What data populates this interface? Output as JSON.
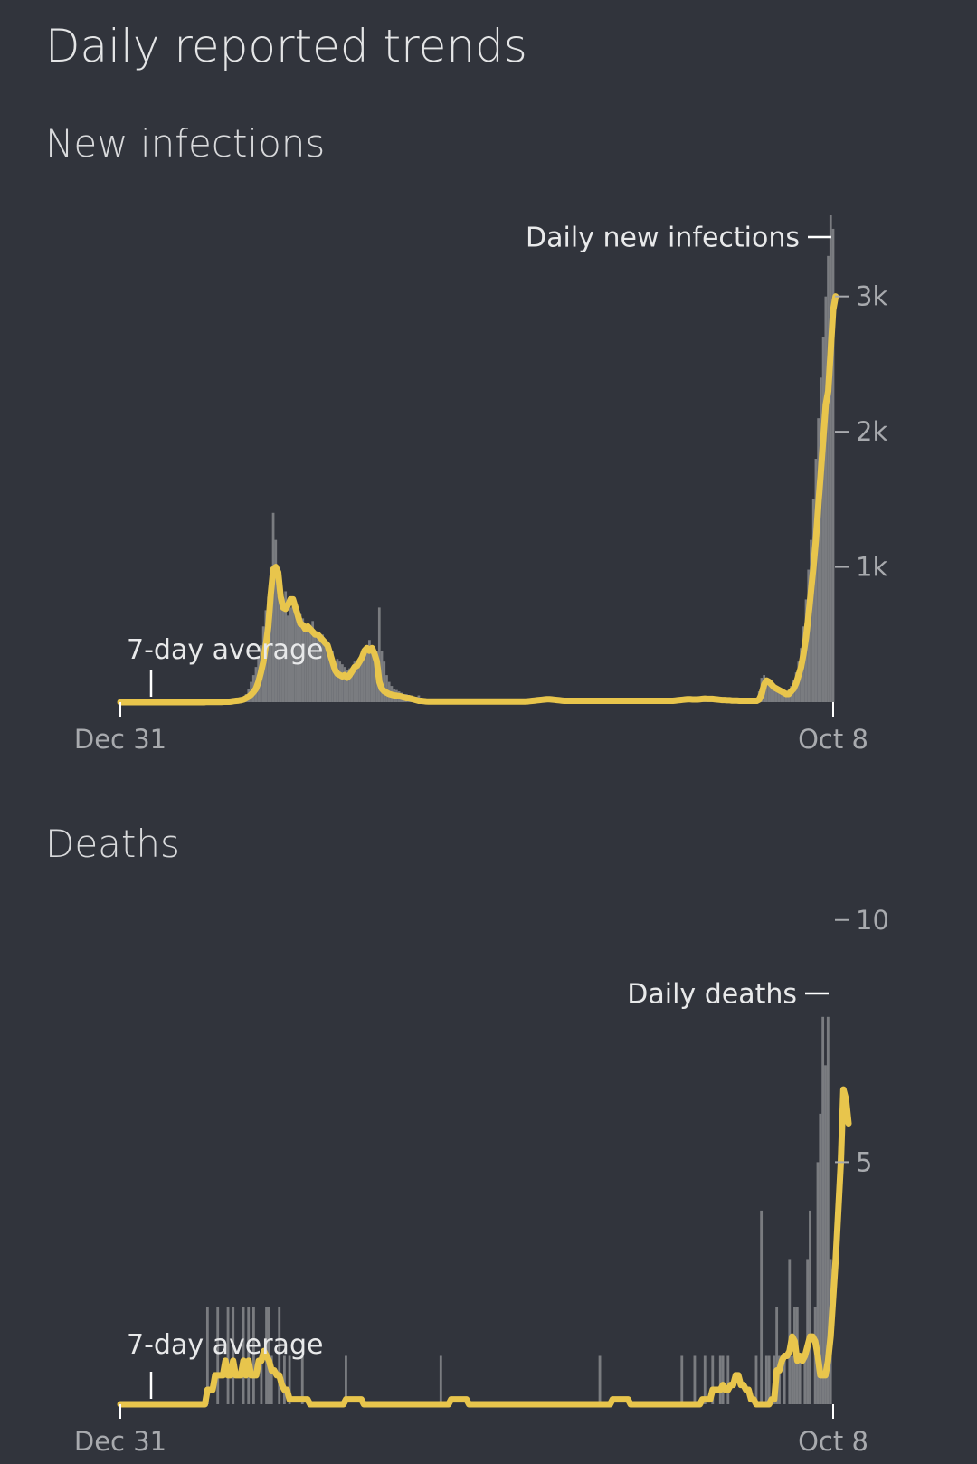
{
  "page": {
    "title": "Daily reported trends"
  },
  "colors": {
    "background": "#31343c",
    "average_line": "#e8c54c",
    "daily_bars": "#7a7c80",
    "text": "#e6e7e8",
    "tick_text": "#a8aaae"
  },
  "chart_data": [
    {
      "id": "infections",
      "type": "bar",
      "title": "New infections",
      "x_start_label": "Dec 31",
      "x_end_label": "Oct 8",
      "ylim": [
        0,
        3600
      ],
      "y_ticks": [
        {
          "value": 1000,
          "label": "1k"
        },
        {
          "value": 2000,
          "label": "2k"
        },
        {
          "value": 3000,
          "label": "3k"
        }
      ],
      "annotations": {
        "daily_label": "Daily new infections",
        "average_label": "7-day average"
      },
      "series": [
        {
          "name": "Daily new infections",
          "kind": "bars",
          "values": [
            0,
            0,
            0,
            0,
            0,
            0,
            0,
            0,
            0,
            0,
            0,
            0,
            0,
            0,
            0,
            0,
            0,
            0,
            0,
            0,
            0,
            0,
            0,
            0,
            0,
            0,
            0,
            0,
            0,
            0,
            0,
            5,
            0,
            0,
            0,
            10,
            5,
            0,
            0,
            0,
            0,
            10,
            20,
            0,
            5,
            15,
            20,
            30,
            10,
            20,
            40,
            60,
            100,
            150,
            200,
            260,
            340,
            420,
            560,
            680,
            780,
            1000,
            1400,
            1200,
            850,
            760,
            700,
            820,
            640,
            700,
            760,
            720,
            700,
            650,
            620,
            580,
            560,
            540,
            600,
            520,
            500,
            480,
            500,
            460,
            420,
            400,
            380,
            300,
            320,
            300,
            280,
            260,
            240,
            250,
            260,
            300,
            280,
            320,
            340,
            380,
            420,
            460,
            420,
            400,
            380,
            700,
            380,
            300,
            200,
            150,
            120,
            100,
            90,
            80,
            70,
            60,
            60,
            50,
            50,
            40,
            40,
            50,
            30,
            30,
            20,
            20,
            15,
            15,
            10,
            10,
            10,
            8,
            8,
            5,
            5,
            5,
            5,
            5,
            5,
            5,
            5,
            5,
            5,
            5,
            5,
            5,
            5,
            5,
            5,
            5,
            5,
            5,
            5,
            5,
            5,
            5,
            5,
            5,
            5,
            5,
            5,
            5,
            5,
            5,
            10,
            10,
            10,
            10,
            15,
            15,
            15,
            15,
            20,
            20,
            20,
            20,
            15,
            15,
            15,
            15,
            10,
            10,
            10,
            10,
            10,
            10,
            10,
            10,
            10,
            10,
            10,
            10,
            10,
            10,
            10,
            10,
            10,
            10,
            10,
            10,
            10,
            10,
            10,
            10,
            10,
            10,
            10,
            10,
            10,
            10,
            10,
            10,
            10,
            10,
            10,
            10,
            10,
            10,
            10,
            10,
            10,
            10,
            10,
            10,
            10,
            15,
            15,
            15,
            20,
            20,
            25,
            20,
            15,
            20,
            20,
            25,
            30,
            20,
            25,
            30,
            20,
            20,
            15,
            15,
            15,
            15,
            10,
            10,
            10,
            10,
            10,
            10,
            10,
            10,
            10,
            10,
            10,
            10,
            20,
            80,
            180,
            200,
            150,
            130,
            110,
            100,
            90,
            80,
            60,
            60,
            70,
            90,
            120,
            160,
            220,
            300,
            400,
            560,
            760,
            980,
            1200,
            1500,
            1800,
            2100,
            2400,
            2700,
            3000,
            3300,
            3600,
            3500
          ]
        },
        {
          "name": "7-day average",
          "kind": "line",
          "values": [
            0,
            0,
            0,
            0,
            0,
            0,
            0,
            0,
            0,
            0,
            0,
            0,
            0,
            0,
            0,
            0,
            0,
            0,
            0,
            0,
            0,
            0,
            0,
            0,
            0,
            0,
            0,
            0,
            0,
            0,
            0,
            0,
            0,
            0,
            0,
            2,
            2,
            2,
            2,
            2,
            2,
            2,
            3,
            3,
            3,
            5,
            8,
            10,
            12,
            15,
            20,
            30,
            40,
            55,
            75,
            100,
            150,
            220,
            300,
            420,
            560,
            800,
            980,
            1000,
            960,
            780,
            700,
            690,
            720,
            760,
            760,
            700,
            640,
            580,
            570,
            540,
            560,
            540,
            520,
            500,
            500,
            480,
            460,
            440,
            420,
            360,
            300,
            240,
            210,
            200,
            190,
            200,
            180,
            200,
            230,
            260,
            270,
            300,
            330,
            380,
            400,
            380,
            400,
            360,
            300,
            150,
            100,
            80,
            70,
            60,
            55,
            50,
            48,
            45,
            40,
            35,
            30,
            30,
            25,
            20,
            15,
            10,
            10,
            8,
            6,
            5,
            5,
            5,
            5,
            5,
            5,
            5,
            5,
            5,
            5,
            5,
            5,
            5,
            5,
            5,
            5,
            5,
            5,
            5,
            5,
            5,
            5,
            5,
            5,
            5,
            5,
            5,
            5,
            5,
            5,
            5,
            5,
            5,
            5,
            5,
            5,
            5,
            5,
            5,
            5,
            6,
            8,
            10,
            12,
            14,
            16,
            18,
            20,
            22,
            22,
            20,
            18,
            16,
            14,
            12,
            10,
            10,
            10,
            10,
            10,
            10,
            10,
            10,
            10,
            10,
            10,
            10,
            10,
            10,
            10,
            10,
            10,
            10,
            10,
            10,
            10,
            10,
            10,
            10,
            10,
            10,
            10,
            10,
            10,
            10,
            10,
            10,
            10,
            10,
            10,
            10,
            10,
            10,
            10,
            10,
            10,
            10,
            10,
            10,
            10,
            12,
            14,
            16,
            18,
            20,
            22,
            22,
            20,
            20,
            20,
            22,
            24,
            26,
            24,
            24,
            24,
            22,
            20,
            18,
            16,
            16,
            14,
            14,
            12,
            12,
            12,
            10,
            10,
            10,
            10,
            10,
            10,
            10,
            10,
            20,
            60,
            130,
            160,
            150,
            130,
            110,
            100,
            90,
            80,
            70,
            60,
            60,
            80,
            100,
            140,
            200,
            260,
            360,
            480,
            640,
            820,
            1000,
            1200,
            1460,
            1700,
            1950,
            2200,
            2300,
            2600,
            2900,
            3000
          ]
        }
      ]
    },
    {
      "id": "deaths",
      "type": "bar",
      "title": "Deaths",
      "x_start_label": "Dec 31",
      "x_end_label": "Oct 8",
      "ylim": [
        0,
        10.5
      ],
      "y_ticks": [
        {
          "value": 5,
          "label": "5"
        },
        {
          "value": 10,
          "label": "10"
        }
      ],
      "annotations": {
        "daily_label": "Daily deaths",
        "average_label": "7-day average"
      },
      "series": [
        {
          "name": "Daily deaths",
          "kind": "bars",
          "values": [
            0,
            0,
            0,
            0,
            0,
            0,
            0,
            0,
            0,
            0,
            0,
            0,
            0,
            0,
            0,
            0,
            0,
            0,
            0,
            0,
            0,
            0,
            0,
            0,
            0,
            0,
            0,
            0,
            0,
            0,
            0,
            0,
            0,
            0,
            2,
            0,
            0,
            0,
            2,
            0,
            0,
            0,
            2,
            0,
            2,
            0,
            0,
            0,
            2,
            0,
            2,
            0,
            2,
            0,
            0,
            1,
            0,
            2,
            2,
            1,
            0,
            0,
            2,
            0,
            1,
            0,
            1,
            0,
            0,
            0,
            0,
            1,
            0,
            0,
            0,
            0,
            0,
            0,
            0,
            0,
            0,
            0,
            0,
            0,
            0,
            0,
            0,
            0,
            1,
            0,
            0,
            0,
            0,
            0,
            0,
            0,
            0,
            0,
            0,
            0,
            0,
            0,
            0,
            0,
            0,
            0,
            0,
            0,
            0,
            0,
            0,
            0,
            0,
            0,
            0,
            0,
            0,
            0,
            0,
            0,
            0,
            0,
            0,
            0,
            0,
            1,
            0,
            0,
            0,
            0,
            0,
            0,
            0,
            0,
            0,
            0,
            0,
            0,
            0,
            0,
            0,
            0,
            0,
            0,
            0,
            0,
            0,
            0,
            0,
            0,
            0,
            0,
            0,
            0,
            0,
            0,
            0,
            0,
            0,
            0,
            0,
            0,
            0,
            0,
            0,
            0,
            0,
            0,
            0,
            0,
            0,
            0,
            0,
            0,
            0,
            0,
            0,
            0,
            0,
            0,
            0,
            0,
            0,
            0,
            0,
            0,
            0,
            1,
            0,
            0,
            0,
            0,
            0,
            0,
            0,
            0,
            0,
            0,
            0,
            0,
            0,
            0,
            0,
            0,
            0,
            0,
            0,
            0,
            0,
            0,
            0,
            0,
            0,
            0,
            0,
            0,
            0,
            0,
            0,
            1,
            0,
            0,
            0,
            0,
            1,
            0,
            0,
            0,
            1,
            0,
            0,
            1,
            0,
            0,
            1,
            1,
            0,
            1,
            0,
            0,
            0,
            0,
            0,
            0,
            0,
            0,
            0,
            0,
            1,
            0,
            4,
            0,
            1,
            1,
            0,
            1,
            2,
            1,
            0,
            1,
            0,
            3,
            1,
            2,
            2,
            1,
            0,
            1,
            3,
            4,
            0,
            2,
            5,
            6,
            8,
            7,
            8,
            3,
            0
          ]
        },
        {
          "name": "7-day average",
          "kind": "line",
          "values": [
            0,
            0,
            0,
            0,
            0,
            0,
            0,
            0,
            0,
            0,
            0,
            0,
            0,
            0,
            0,
            0,
            0,
            0,
            0,
            0,
            0,
            0,
            0,
            0,
            0,
            0,
            0,
            0,
            0,
            0,
            0,
            0,
            0,
            0,
            0.3,
            0.3,
            0.3,
            0.6,
            0.6,
            0.6,
            0.6,
            0.9,
            0.6,
            0.6,
            0.9,
            0.6,
            0.6,
            0.6,
            0.9,
            0.6,
            0.9,
            0.6,
            0.6,
            0.6,
            0.9,
            0.9,
            1.1,
            1.0,
            0.9,
            0.7,
            0.7,
            0.6,
            0.6,
            0.4,
            0.3,
            0.3,
            0.1,
            0.1,
            0.1,
            0.1,
            0.1,
            0.1,
            0.1,
            0.1,
            0,
            0,
            0,
            0,
            0,
            0,
            0,
            0,
            0,
            0,
            0,
            0,
            0,
            0,
            0.1,
            0.1,
            0.1,
            0.1,
            0.1,
            0.1,
            0.1,
            0,
            0,
            0,
            0,
            0,
            0,
            0,
            0,
            0,
            0,
            0,
            0,
            0,
            0,
            0,
            0,
            0,
            0,
            0,
            0,
            0,
            0,
            0,
            0,
            0,
            0,
            0,
            0,
            0,
            0,
            0,
            0,
            0,
            0,
            0.1,
            0.1,
            0.1,
            0.1,
            0.1,
            0.1,
            0.1,
            0,
            0,
            0,
            0,
            0,
            0,
            0,
            0,
            0,
            0,
            0,
            0,
            0,
            0,
            0,
            0,
            0,
            0,
            0,
            0,
            0,
            0,
            0,
            0,
            0,
            0,
            0,
            0,
            0,
            0,
            0,
            0,
            0,
            0,
            0,
            0,
            0,
            0,
            0,
            0,
            0,
            0,
            0,
            0,
            0,
            0,
            0,
            0,
            0,
            0,
            0,
            0,
            0,
            0,
            0,
            0,
            0.1,
            0.1,
            0.1,
            0.1,
            0.1,
            0.1,
            0.1,
            0,
            0,
            0,
            0,
            0,
            0,
            0,
            0,
            0,
            0,
            0,
            0,
            0,
            0,
            0,
            0,
            0,
            0,
            0,
            0,
            0,
            0,
            0,
            0,
            0,
            0,
            0,
            0,
            0.1,
            0.1,
            0.1,
            0.1,
            0.3,
            0.3,
            0.3,
            0.3,
            0.4,
            0.3,
            0.3,
            0.4,
            0.4,
            0.6,
            0.6,
            0.4,
            0.4,
            0.3,
            0.3,
            0.1,
            0.1,
            0,
            0,
            0,
            0,
            0,
            0,
            0.1,
            0.1,
            0.7,
            0.7,
            0.9,
            1.0,
            1.0,
            1.1,
            1.4,
            1.3,
            0.9,
            1.0,
            0.9,
            1.0,
            1.2,
            1.4,
            1.4,
            1.3,
            1.0,
            0.6,
            0.6,
            0.6,
            0.9,
            1.4,
            2.2,
            3.0,
            4.0,
            5.0,
            6.5,
            6.3,
            5.8
          ]
        }
      ]
    }
  ]
}
